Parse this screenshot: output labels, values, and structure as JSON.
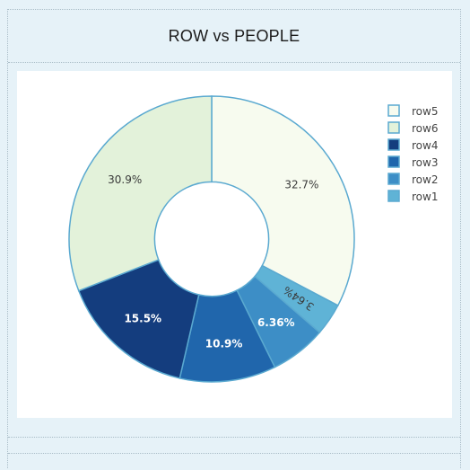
{
  "chart_data": {
    "type": "pie",
    "title": "ROW vs PEOPLE",
    "hole": 0.4,
    "slices": [
      {
        "label": "row5",
        "value": 32.7,
        "text": "32.7%",
        "color": "#f7fbef",
        "text_color": "#3a3a3a"
      },
      {
        "label": "row1",
        "value": 3.64,
        "text": "3.64%",
        "color": "#5fb3d6",
        "text_color": "#3a3a3a"
      },
      {
        "label": "row2",
        "value": 6.36,
        "text": "6.36%",
        "color": "#3d8ec6",
        "text_color": "#ffffff"
      },
      {
        "label": "row3",
        "value": 10.9,
        "text": "10.9%",
        "color": "#2066ac",
        "text_color": "#ffffff"
      },
      {
        "label": "row4",
        "value": 15.5,
        "text": "15.5%",
        "color": "#143d7e",
        "text_color": "#ffffff"
      },
      {
        "label": "row6",
        "value": 30.9,
        "text": "30.9%",
        "color": "#e3f2da",
        "text_color": "#3a3a3a"
      }
    ],
    "legend": {
      "placement": "top-right",
      "order": [
        "row5",
        "row6",
        "row4",
        "row3",
        "row2",
        "row1"
      ]
    },
    "border_color": "#5aa9d0"
  }
}
